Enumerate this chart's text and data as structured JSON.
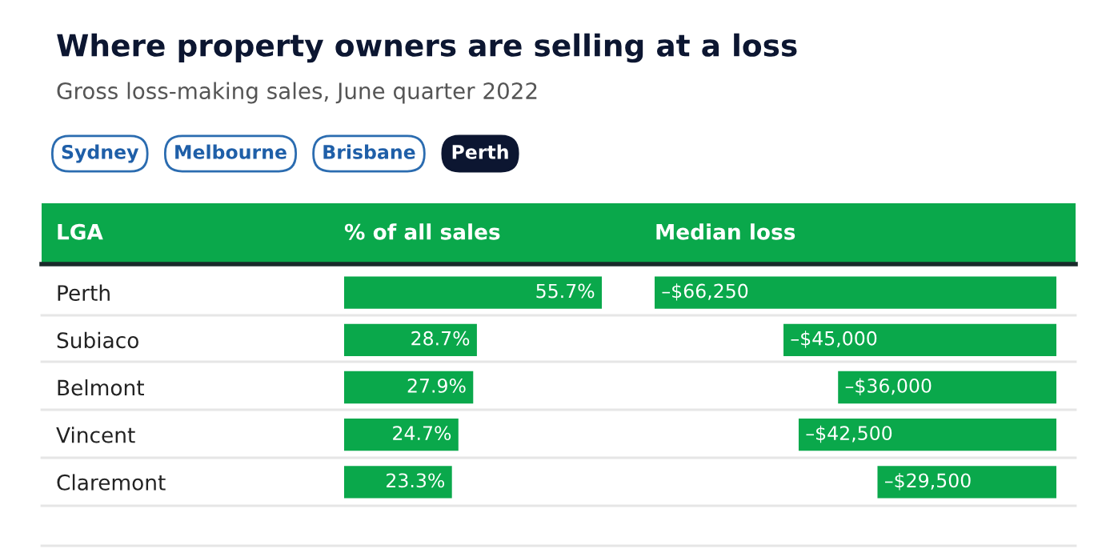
{
  "chart_data": [
    {
      "type": "other",
      "title": "Where property owners are selling at a loss",
      "subtitle": "Gross loss-making sales, June quarter 2022",
      "annotations": [
        "Sydney",
        "Melbourne",
        "Brisbane",
        "Perth"
      ]
    },
    {
      "type": "bar",
      "orientation": "horizontal",
      "title": "% of all sales",
      "ylabel": "LGA",
      "categories": [
        "Perth",
        "Subiaco",
        "Belmont",
        "Vincent",
        "Claremont"
      ],
      "values": [
        55.7,
        28.7,
        27.9,
        24.7,
        23.3
      ],
      "value_labels": [
        "55.7%",
        "28.7%",
        "27.9%",
        "24.7%",
        "23.3%"
      ],
      "color": "#0aa84b",
      "xlim": [
        0,
        55.7
      ],
      "tick_labels": "y"
    },
    {
      "type": "bar",
      "orientation": "horizontal",
      "title": "Median loss",
      "categories": [
        null,
        null,
        null,
        null,
        null
      ],
      "values": [
        -66250,
        -45000,
        -36000,
        -42500,
        -29500
      ],
      "value_labels": [
        "–$66,250",
        "–$45,000",
        "–$36,000",
        "–$42,500",
        "–$29,500"
      ],
      "color": "#0aa84b",
      "xlim": [
        -66250,
        0
      ],
      "tick_labels": false
    }
  ]
}
